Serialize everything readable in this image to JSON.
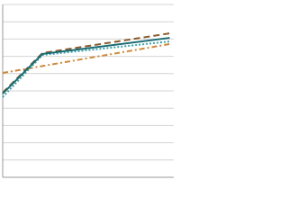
{
  "chart_data": {
    "type": "line",
    "x": [
      0,
      1,
      4.2
    ],
    "xlim": [
      0,
      4.3
    ],
    "ylim": [
      0,
      100
    ],
    "yticks": [
      0,
      10,
      20,
      30,
      40,
      50,
      60,
      70,
      80,
      90,
      100
    ],
    "grid": true,
    "series": [
      {
        "color": "#d0883a",
        "dash": "dashdot",
        "values": [
          60.4,
          64.4,
          77.1
        ]
      },
      {
        "color": "#3ea3ab",
        "dash": "dotted",
        "values": [
          46.4,
          70.8,
          78.6
        ]
      },
      {
        "color": "#8b5a2b",
        "dash": "dashed",
        "values": [
          49,
          71.9,
          83.3
        ]
      },
      {
        "color": "#1a6b73",
        "dash": "solid",
        "values": [
          48.4,
          71.4,
          80.7
        ]
      }
    ]
  }
}
